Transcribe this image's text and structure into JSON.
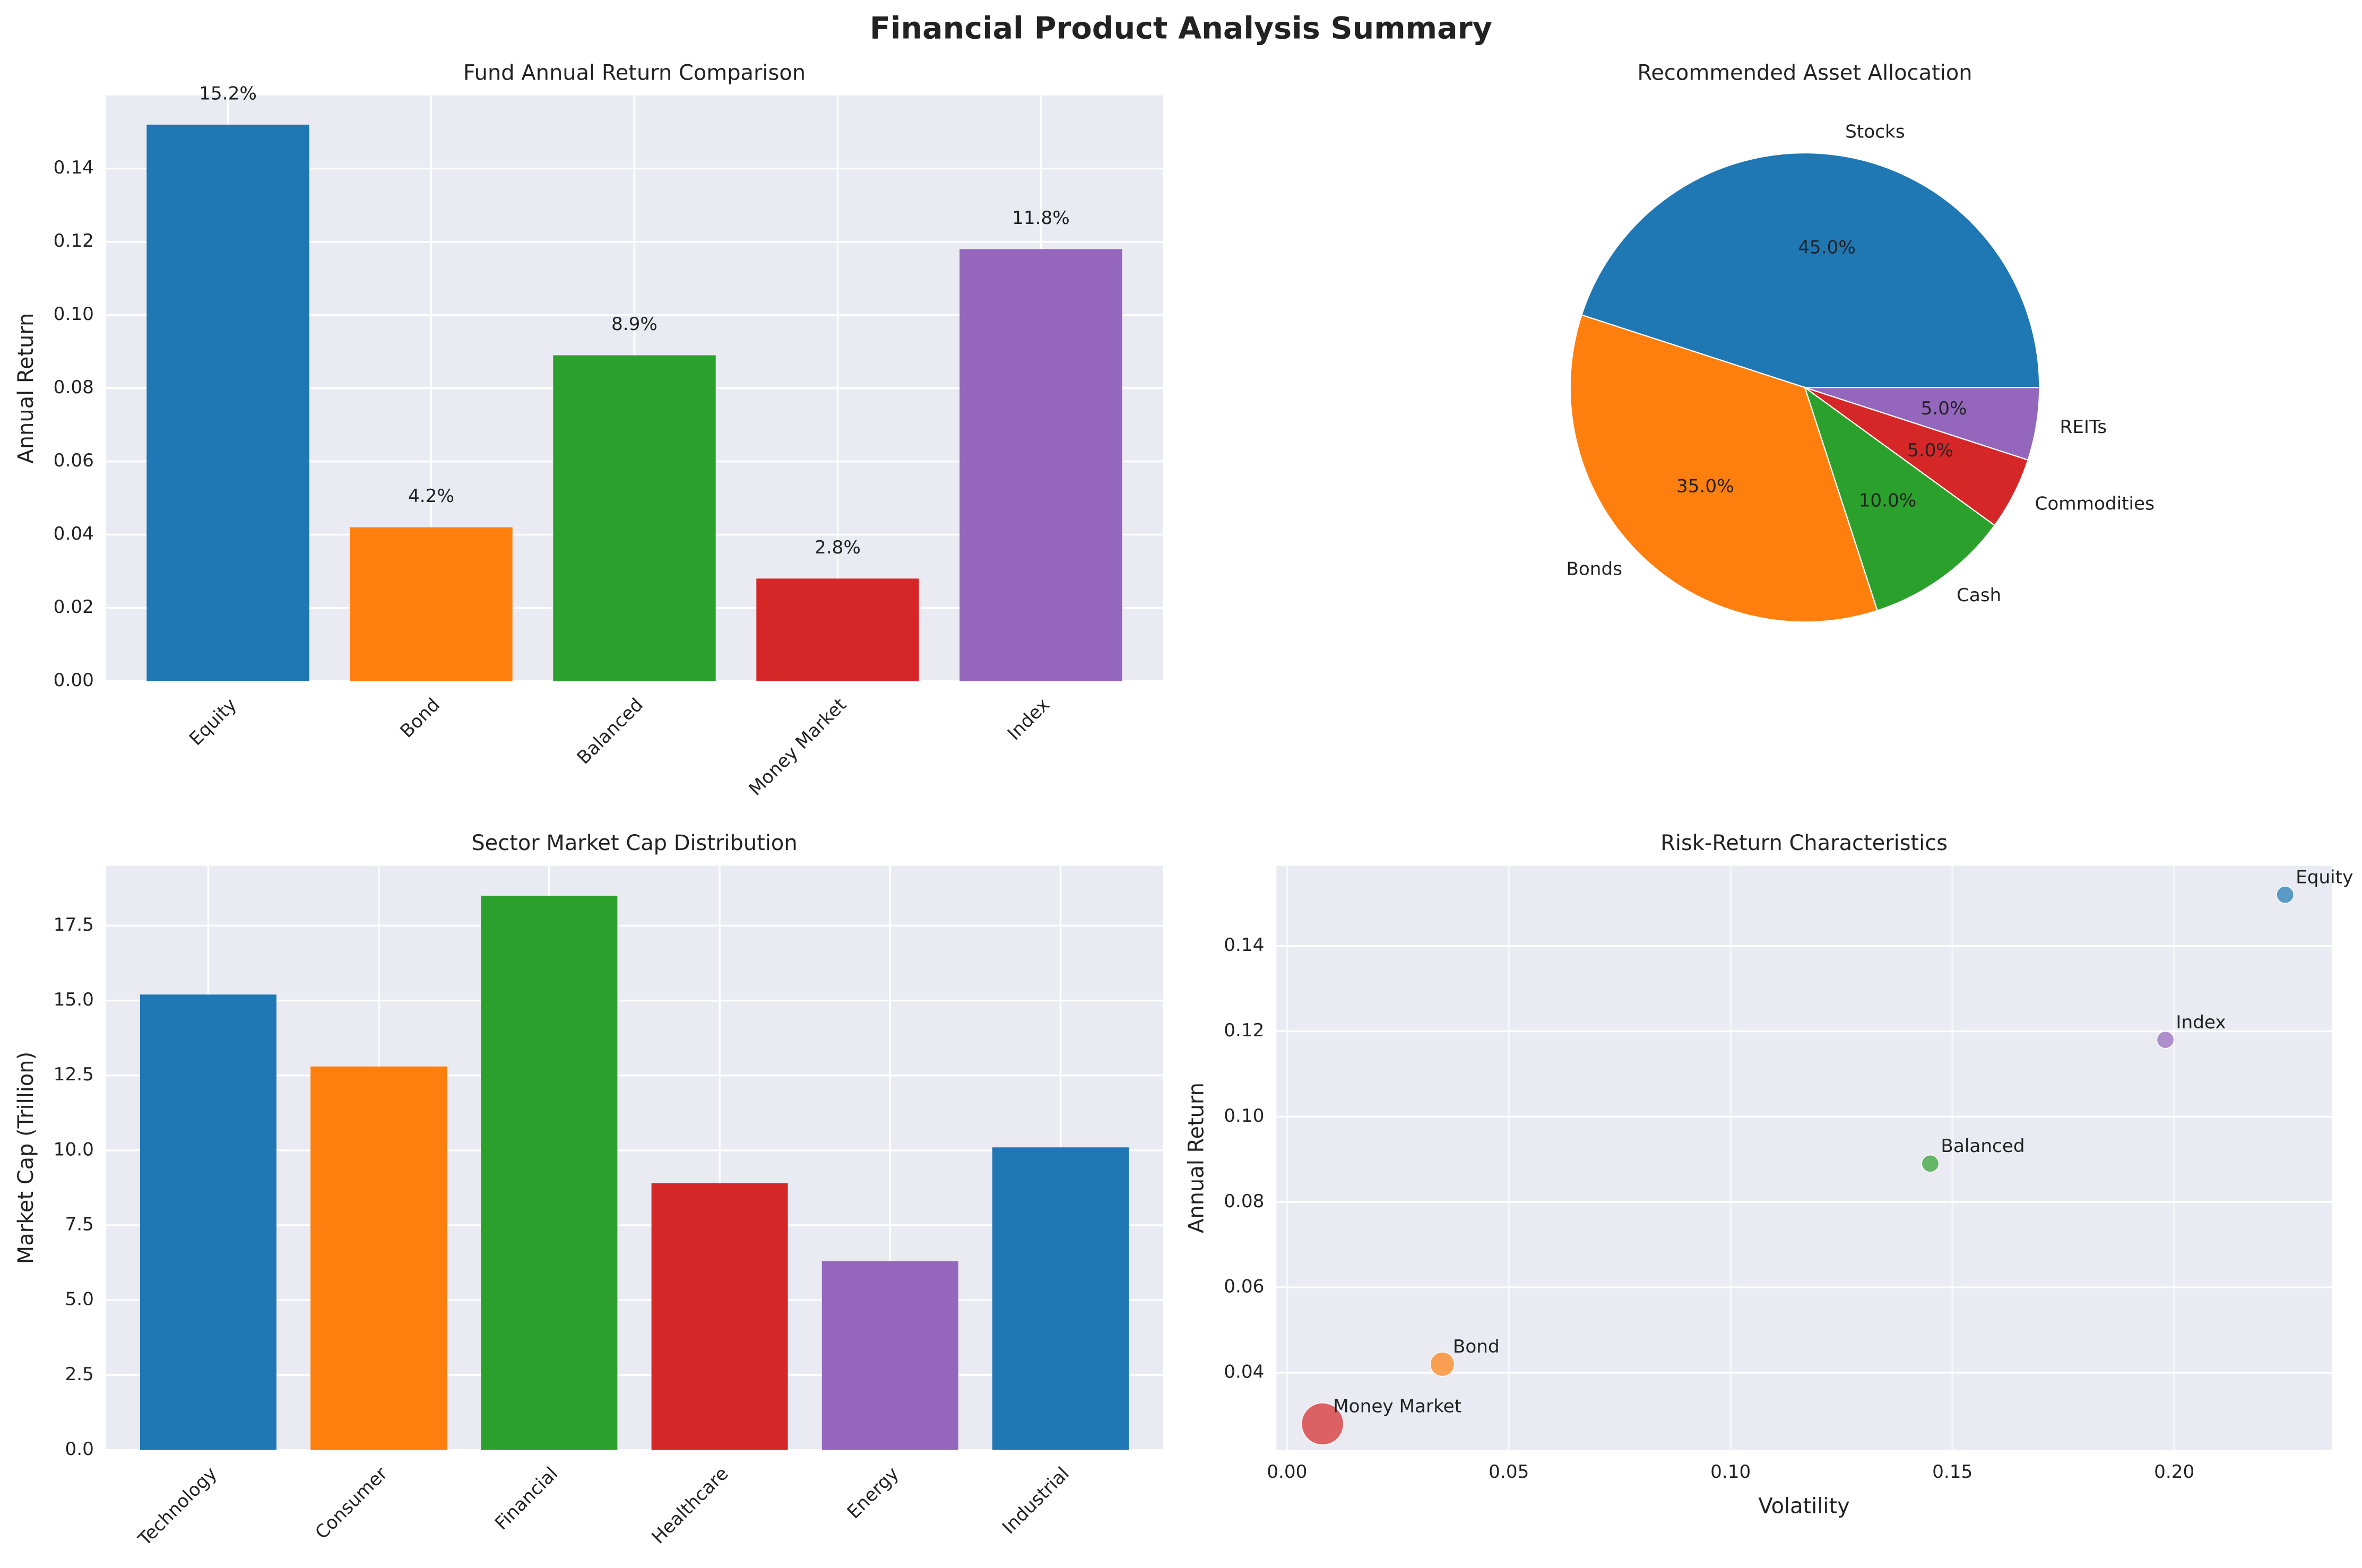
{
  "title": "Financial Product Analysis Summary",
  "chart_data": [
    {
      "type": "bar",
      "title": "Fund Annual Return Comparison",
      "ylabel": "Annual Return",
      "categories": [
        "Equity",
        "Bond",
        "Balanced",
        "Money Market",
        "Index"
      ],
      "values": [
        0.152,
        0.042,
        0.089,
        0.028,
        0.118
      ],
      "value_labels": [
        "15.2%",
        "4.2%",
        "8.9%",
        "2.8%",
        "11.8%"
      ],
      "colors": [
        "#1f77b4",
        "#ff7f0e",
        "#2ca02c",
        "#d62728",
        "#9467bd"
      ],
      "ylim": [
        0,
        0.16
      ],
      "yticks": [
        {
          "value": 0,
          "label": "0.00"
        },
        {
          "value": 0.02,
          "label": "0.02"
        },
        {
          "value": 0.04,
          "label": "0.04"
        },
        {
          "value": 0.06,
          "label": "0.06"
        },
        {
          "value": 0.08,
          "label": "0.08"
        },
        {
          "value": 0.1,
          "label": "0.10"
        },
        {
          "value": 0.12,
          "label": "0.12"
        },
        {
          "value": 0.14,
          "label": "0.14"
        }
      ],
      "grid": true
    },
    {
      "type": "pie",
      "title": "Recommended Asset Allocation",
      "labels": [
        "Stocks",
        "Bonds",
        "Cash",
        "Commodities",
        "REITs"
      ],
      "values": [
        45,
        35,
        10,
        5,
        5
      ],
      "value_labels": [
        "45.0%",
        "35.0%",
        "10.0%",
        "5.0%",
        "5.0%"
      ],
      "colors": [
        "#1f77b4",
        "#ff7f0e",
        "#2ca02c",
        "#d62728",
        "#9467bd"
      ],
      "startangle": 0
    },
    {
      "type": "bar",
      "title": "Sector Market Cap Distribution",
      "ylabel": "Market Cap (Trillion)",
      "categories": [
        "Technology",
        "Consumer",
        "Financial",
        "Healthcare",
        "Energy",
        "Industrial"
      ],
      "values": [
        15.2,
        12.8,
        18.5,
        8.9,
        6.3,
        10.1
      ],
      "colors": [
        "#1f77b4",
        "#ff7f0e",
        "#2ca02c",
        "#d62728",
        "#9467bd",
        "#1f77b4"
      ],
      "ylim": [
        0,
        19.5
      ],
      "yticks": [
        {
          "value": 0,
          "label": "0.0"
        },
        2.5,
        {
          "value": 5,
          "label": "5.0"
        },
        7.5,
        {
          "value": 10,
          "label": "10.0"
        },
        12.5,
        {
          "value": 15,
          "label": "15.0"
        },
        17.5
      ],
      "grid": true
    },
    {
      "type": "scatter",
      "title": "Risk-Return Characteristics",
      "xlabel": "Volatility",
      "ylabel": "Annual Return",
      "labels": [
        "Equity",
        "Bond",
        "Balanced",
        "Money Market",
        "Index"
      ],
      "x": [
        0.225,
        0.035,
        0.145,
        0.008,
        0.198
      ],
      "y": [
        0.152,
        0.042,
        0.089,
        0.028,
        0.118
      ],
      "sizes": [
        50,
        100,
        50,
        300,
        50
      ],
      "colors": [
        "#1f77b4",
        "#ff7f0e",
        "#2ca02c",
        "#d62728",
        "#9467bd"
      ],
      "xlim": [
        -0.0024,
        0.2355
      ],
      "ylim": [
        0.0219,
        0.1588
      ],
      "xticks": [
        {
          "value": 0,
          "label": "0.00"
        },
        {
          "value": 0.05,
          "label": "0.05"
        },
        {
          "value": 0.1,
          "label": "0.10"
        },
        {
          "value": 0.15,
          "label": "0.15"
        },
        {
          "value": 0.2,
          "label": "0.20"
        }
      ],
      "yticks": [
        {
          "value": 0.04,
          "label": "0.04"
        },
        {
          "value": 0.06,
          "label": "0.06"
        },
        {
          "value": 0.08,
          "label": "0.08"
        },
        {
          "value": 0.1,
          "label": "0.10"
        },
        {
          "value": 0.12,
          "label": "0.12"
        },
        {
          "value": 0.14,
          "label": "0.14"
        }
      ],
      "grid": true
    }
  ]
}
